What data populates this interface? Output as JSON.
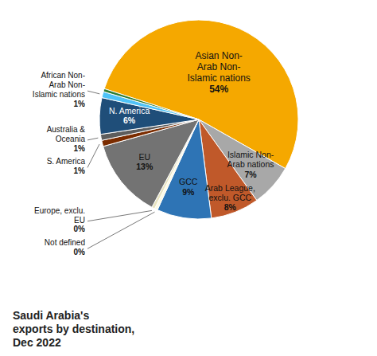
{
  "chart_data": {
    "type": "pie",
    "title": "Saudi Arabia's\nexports by destination,\nDec 2022",
    "categories": [
      "Asian Non-\nArab Non-\nIslamic nations",
      "Islamic Non-\nArab nations",
      "Arab League,\nexclu. GCC",
      "GCC",
      "Not defined",
      "Europe, exclu.\nEU",
      "EU",
      "S. America",
      "Australia &\nOceania",
      "N. America",
      "African Non-\nArab Non-\nIslamic nations",
      null
    ],
    "values": [
      54,
      7,
      8,
      9,
      0.5,
      0.5,
      13,
      1,
      1,
      6,
      1,
      0.5
    ],
    "value_labels": [
      "54%",
      "7%",
      "8%",
      "9%",
      "0%",
      "0%",
      "13%",
      "1%",
      "1%",
      "6%",
      "1%",
      null
    ],
    "colors": [
      "#F5A800",
      "#A8A8A8",
      "#C0592A",
      "#2E74B5",
      "#FDFBE4",
      "#E8E4C0",
      "#737373",
      "#7B2C00",
      "#5D5D5D",
      "#1F4E79",
      "#4FC3F7",
      "#2E7D32"
    ],
    "data_labels": true
  }
}
